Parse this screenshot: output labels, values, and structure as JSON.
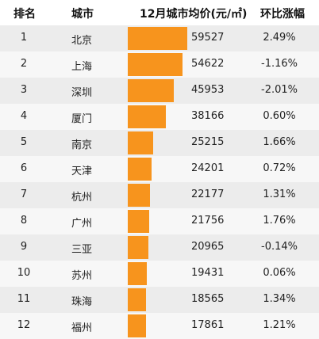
{
  "header": {
    "rank": "排名",
    "city": "城市",
    "price": "12月城市均价(元/㎡)",
    "change": "环比涨幅"
  },
  "chart_data": {
    "type": "bar",
    "orientation": "horizontal",
    "colors": {
      "bar": "#f7941d"
    },
    "rows": [
      {
        "rank": "1",
        "city": "北京",
        "value": 59527,
        "value_label": "59527",
        "change": "2.49%"
      },
      {
        "rank": "2",
        "city": "上海",
        "value": 54622,
        "value_label": "54622",
        "change": "-1.16%"
      },
      {
        "rank": "3",
        "city": "深圳",
        "value": 45953,
        "value_label": "45953",
        "change": "-2.01%"
      },
      {
        "rank": "4",
        "city": "厦门",
        "value": 38166,
        "value_label": "38166",
        "change": "0.60%"
      },
      {
        "rank": "5",
        "city": "南京",
        "value": 25215,
        "value_label": "25215",
        "change": "1.66%"
      },
      {
        "rank": "6",
        "city": "天津",
        "value": 24201,
        "value_label": "24201",
        "change": "0.72%"
      },
      {
        "rank": "7",
        "city": "杭州",
        "value": 22177,
        "value_label": "22177",
        "change": "1.31%"
      },
      {
        "rank": "8",
        "city": "广州",
        "value": 21756,
        "value_label": "21756",
        "change": "1.76%"
      },
      {
        "rank": "9",
        "city": "三亚",
        "value": 20965,
        "value_label": "20965",
        "change": "-0.14%"
      },
      {
        "rank": "10",
        "city": "苏州",
        "value": 19431,
        "value_label": "19431",
        "change": "0.06%"
      },
      {
        "rank": "11",
        "city": "珠海",
        "value": 18565,
        "value_label": "18565",
        "change": "1.34%"
      },
      {
        "rank": "12",
        "city": "福州",
        "value": 17861,
        "value_label": "17861",
        "change": "1.21%"
      }
    ]
  }
}
